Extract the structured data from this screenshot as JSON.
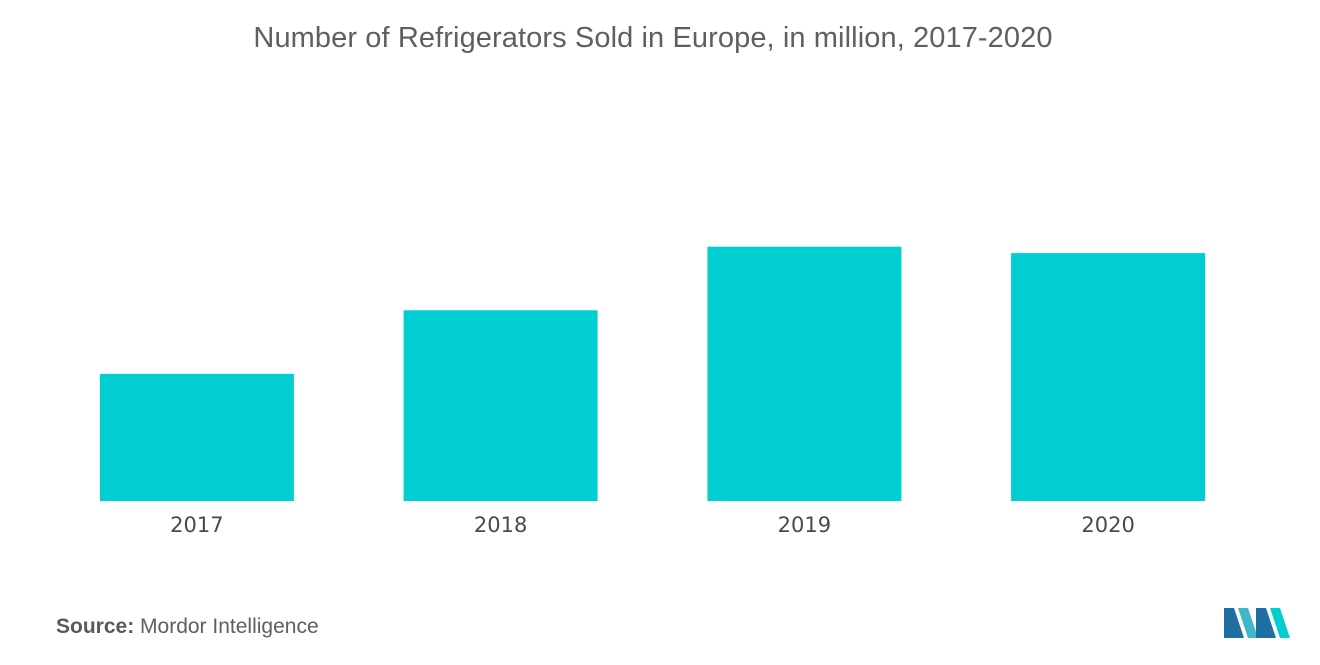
{
  "chart_data": {
    "type": "bar",
    "title": "Number of Refrigerators Sold in Europe, in million, 2017-2020",
    "categories": [
      "2017",
      "2018",
      "2019",
      "2020"
    ],
    "values": [
      20,
      30,
      40,
      39
    ],
    "ylim": [
      0,
      70
    ],
    "xlabel": "",
    "ylabel": "",
    "grid": false,
    "legend": "none",
    "bar_color": "#00ced1"
  },
  "source": {
    "label": "Source:",
    "text": "Mordor Intelligence"
  },
  "logo": {
    "icon": "mordor-intelligence-logo-icon",
    "colors": [
      "#1f6fa3",
      "#3fb6c9",
      "#00ced1"
    ]
  }
}
